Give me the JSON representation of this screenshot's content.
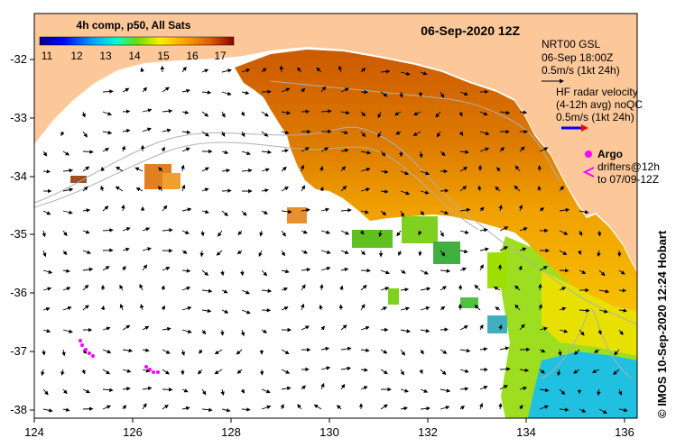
{
  "map": {
    "date_title": "06-Sep-2020 12Z",
    "product_label": "4h comp, p50, All Sats",
    "colorbar_ticks": [
      "11",
      "12",
      "13",
      "14",
      "15",
      "16",
      "17"
    ],
    "colorbar_range": [
      10.5,
      17.5
    ],
    "x_ticks": [
      "124",
      "126",
      "128",
      "130",
      "132",
      "134",
      "136"
    ],
    "y_ticks": [
      "-32",
      "-33",
      "-34",
      "-35",
      "-36",
      "-37",
      "-38"
    ],
    "lon_range": [
      124,
      136.6
    ],
    "lat_range": [
      -38.2,
      -31.3
    ],
    "legend": {
      "nrt_title": "NRT00 GSL",
      "nrt_time": "06-Sep 18:00Z",
      "nrt_scale": "0.5m/s (1kt 24h)",
      "hf_title": "HF radar velocity",
      "hf_avg": "(4-12h avg) noQC",
      "hf_scale": "0.5m/s (1kt 24h)",
      "argo_label": "Argo",
      "drifters_label": "drifters@12h",
      "drifters_to": "to 07/09-12Z"
    },
    "credit": "© IMOS 10-Sep-2020 12:24 Hobart",
    "colors": {
      "land": "#fcc89a",
      "nodata": "#ffffff",
      "argo": "#ff00ff",
      "hf_arrow": "#0000ff",
      "hf_arrow_head": "#ff0000"
    }
  }
}
